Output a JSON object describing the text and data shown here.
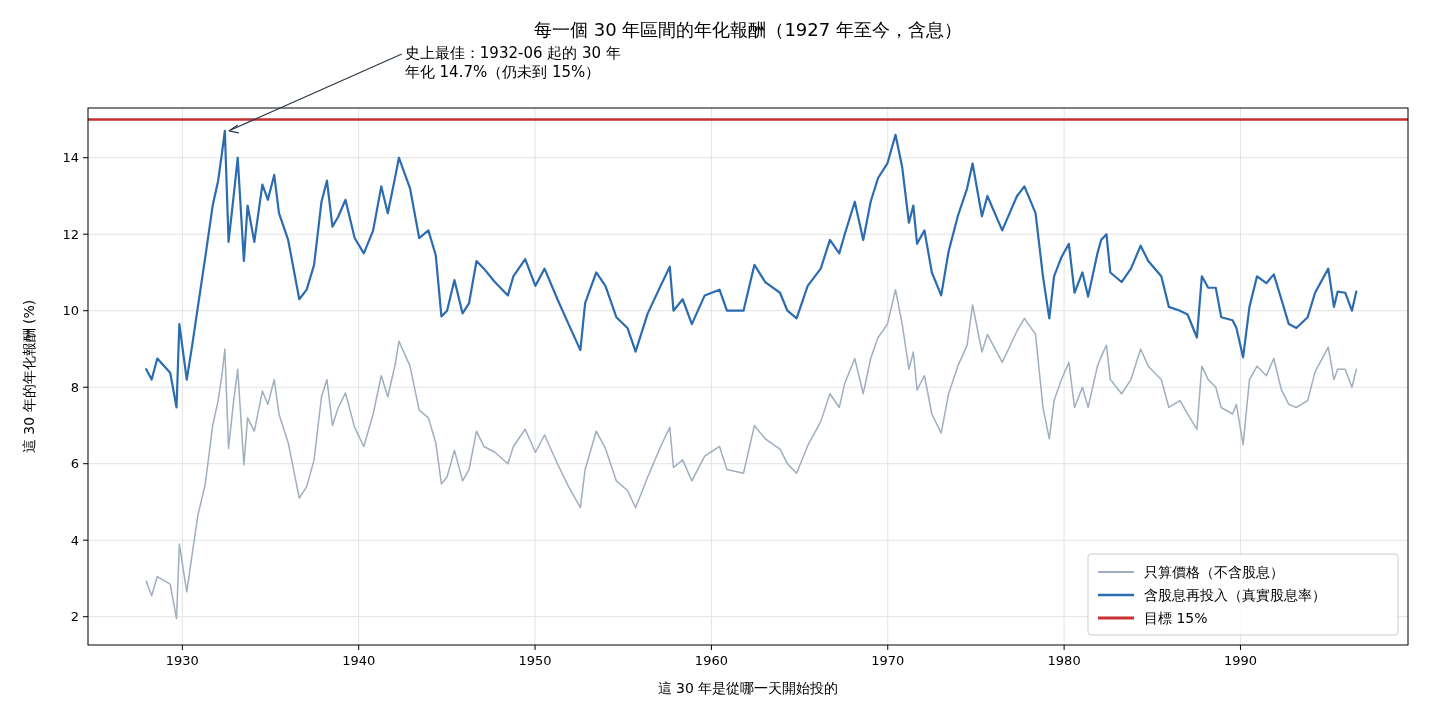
{
  "chart_data": {
    "type": "line",
    "title": "每一個 30 年區間的年化報酬（1927 年至今，含息）",
    "xlabel": "這 30 年是從哪一天開始投的",
    "ylabel": "這 30 年的年化報酬 (%)",
    "x": [
      1927.95,
      1928.26,
      1928.58,
      1929.31,
      1929.67,
      1929.83,
      1930.25,
      1930.56,
      1930.88,
      1931.3,
      1931.72,
      1932.03,
      1932.24,
      1932.41,
      1932.62,
      1932.91,
      1933.14,
      1933.49,
      1933.7,
      1934.08,
      1934.54,
      1934.85,
      1935.21,
      1935.48,
      1936.0,
      1936.63,
      1937.05,
      1937.47,
      1937.89,
      1938.2,
      1938.51,
      1938.83,
      1939.25,
      1939.77,
      1940.29,
      1940.82,
      1941.28,
      1941.65,
      1942.07,
      1942.28,
      1942.91,
      1943.43,
      1943.95,
      1944.37,
      1944.69,
      1945.01,
      1945.43,
      1945.89,
      1946.26,
      1946.68,
      1947.1,
      1947.72,
      1948.46,
      1948.77,
      1949.44,
      1950.02,
      1950.54,
      1951.27,
      1951.9,
      1952.57,
      1952.84,
      1953.47,
      1953.99,
      1954.61,
      1955.24,
      1955.7,
      1956.39,
      1957.12,
      1957.64,
      1957.85,
      1958.37,
      1958.89,
      1959.62,
      1960.46,
      1960.88,
      1961.82,
      1962.44,
      1963.05,
      1963.89,
      1964.31,
      1964.83,
      1965.46,
      1966.2,
      1966.72,
      1967.25,
      1967.56,
      1968.13,
      1968.61,
      1969.03,
      1969.45,
      1969.98,
      1970.44,
      1970.82,
      1971.2,
      1971.45,
      1971.66,
      1972.08,
      1972.5,
      1973.03,
      1973.45,
      1973.97,
      1974.5,
      1974.81,
      1975.34,
      1975.65,
      1976.49,
      1977.33,
      1977.75,
      1978.38,
      1978.8,
      1979.16,
      1979.43,
      1979.85,
      1980.27,
      1980.59,
      1981.04,
      1981.36,
      1981.89,
      1982.1,
      1982.4,
      1982.62,
      1983.26,
      1983.79,
      1984.34,
      1984.77,
      1985.51,
      1985.94,
      1986.57,
      1987.0,
      1987.53,
      1987.81,
      1988.17,
      1988.6,
      1988.91,
      1989.55,
      1989.77,
      1990.15,
      1990.51,
      1990.94,
      1991.47,
      1991.89,
      1992.32,
      1992.74,
      1993.17,
      1993.81,
      1994.23,
      1994.98,
      1995.3,
      1995.51,
      1995.94,
      1996.32,
      1996.57
    ],
    "series": [
      {
        "name": "只算價格（不含股息）",
        "color": "#a0aec0",
        "values": [
          2.93,
          2.55,
          3.05,
          2.85,
          1.95,
          3.9,
          2.65,
          3.65,
          4.65,
          5.47,
          7.0,
          7.65,
          8.3,
          9.0,
          6.4,
          7.65,
          8.47,
          5.97,
          7.2,
          6.85,
          7.9,
          7.55,
          8.2,
          7.3,
          6.55,
          5.1,
          5.4,
          6.1,
          7.75,
          8.2,
          7.0,
          7.45,
          7.85,
          6.95,
          6.45,
          7.3,
          8.3,
          7.75,
          8.6,
          9.2,
          8.55,
          7.4,
          7.2,
          6.55,
          5.47,
          5.65,
          6.35,
          5.55,
          5.85,
          6.85,
          6.45,
          6.3,
          6.0,
          6.45,
          6.9,
          6.3,
          6.75,
          6.0,
          5.4,
          4.85,
          5.85,
          6.85,
          6.4,
          5.55,
          5.3,
          4.85,
          5.65,
          6.45,
          6.95,
          5.9,
          6.1,
          5.55,
          6.2,
          6.45,
          5.85,
          5.75,
          7.0,
          6.65,
          6.38,
          6.0,
          5.75,
          6.47,
          7.1,
          7.83,
          7.47,
          8.1,
          8.75,
          7.83,
          8.75,
          9.3,
          9.65,
          10.55,
          9.65,
          8.47,
          8.92,
          7.93,
          8.3,
          7.3,
          6.8,
          7.83,
          8.55,
          9.1,
          10.15,
          8.92,
          9.38,
          8.65,
          9.47,
          9.8,
          9.38,
          7.47,
          6.65,
          7.65,
          8.2,
          8.65,
          7.47,
          8.0,
          7.47,
          8.55,
          8.8,
          9.1,
          8.2,
          7.83,
          8.2,
          9.0,
          8.55,
          8.2,
          7.47,
          7.65,
          7.3,
          6.9,
          8.55,
          8.2,
          8.0,
          7.47,
          7.3,
          7.55,
          6.5,
          8.2,
          8.55,
          8.3,
          8.75,
          7.93,
          7.55,
          7.47,
          7.65,
          8.4,
          9.05,
          8.2,
          8.47,
          8.47,
          8.0,
          8.47
        ]
      },
      {
        "name": "含股息再投入（真實股息率）",
        "color": "#2b6cb0",
        "values": [
          8.47,
          8.2,
          8.75,
          8.38,
          7.47,
          9.65,
          8.2,
          9.1,
          10.1,
          11.4,
          12.75,
          13.4,
          14.1,
          14.7,
          11.8,
          13.0,
          14.0,
          11.3,
          12.75,
          11.8,
          13.3,
          12.9,
          13.55,
          12.55,
          11.85,
          10.3,
          10.55,
          11.2,
          12.85,
          13.4,
          12.2,
          12.45,
          12.9,
          11.9,
          11.5,
          12.1,
          13.25,
          12.55,
          13.5,
          14.0,
          13.2,
          11.9,
          12.1,
          11.45,
          9.85,
          10.0,
          10.8,
          9.93,
          10.2,
          11.3,
          11.1,
          10.75,
          10.4,
          10.9,
          11.35,
          10.65,
          11.1,
          10.3,
          9.65,
          8.97,
          10.2,
          11.0,
          10.65,
          9.83,
          9.55,
          8.93,
          9.93,
          10.65,
          11.15,
          10.0,
          10.3,
          9.65,
          10.4,
          10.55,
          10.0,
          10.0,
          11.2,
          10.75,
          10.47,
          10.0,
          9.8,
          10.65,
          11.1,
          11.85,
          11.5,
          12.0,
          12.85,
          11.85,
          12.85,
          13.47,
          13.85,
          14.6,
          13.75,
          12.3,
          12.75,
          11.75,
          12.1,
          11.0,
          10.4,
          11.55,
          12.47,
          13.2,
          13.85,
          12.47,
          13.0,
          12.1,
          13.0,
          13.25,
          12.55,
          10.9,
          9.8,
          10.9,
          11.4,
          11.75,
          10.47,
          11.0,
          10.37,
          11.5,
          11.85,
          12.0,
          11.0,
          10.75,
          11.1,
          11.7,
          11.3,
          10.9,
          10.1,
          10.0,
          9.9,
          9.3,
          10.9,
          10.6,
          10.6,
          9.83,
          9.75,
          9.55,
          8.78,
          10.1,
          10.9,
          10.72,
          10.95,
          10.3,
          9.65,
          9.55,
          9.83,
          10.47,
          11.1,
          10.1,
          10.5,
          10.47,
          10.0,
          10.5
        ]
      }
    ],
    "ref_lines": [
      {
        "axis": "y",
        "value": 15,
        "label": "目標 15%",
        "color": "#c53030"
      }
    ],
    "annotations": [
      {
        "text": "史上最佳：1932-06 起的 30 年",
        "x": 1932.41,
        "y": 14.7
      },
      "年化 14.7%（仍未到 15%）"
    ],
    "xlim": [
      1924.65,
      1999.5
    ],
    "ylim": [
      1.26,
      15.3
    ],
    "xticks": [
      1930,
      1940,
      1950,
      1960,
      1970,
      1980,
      1990
    ],
    "yticks": [
      2,
      4,
      6,
      8,
      10,
      12,
      14
    ],
    "grid": true,
    "legend": "bottom right"
  }
}
